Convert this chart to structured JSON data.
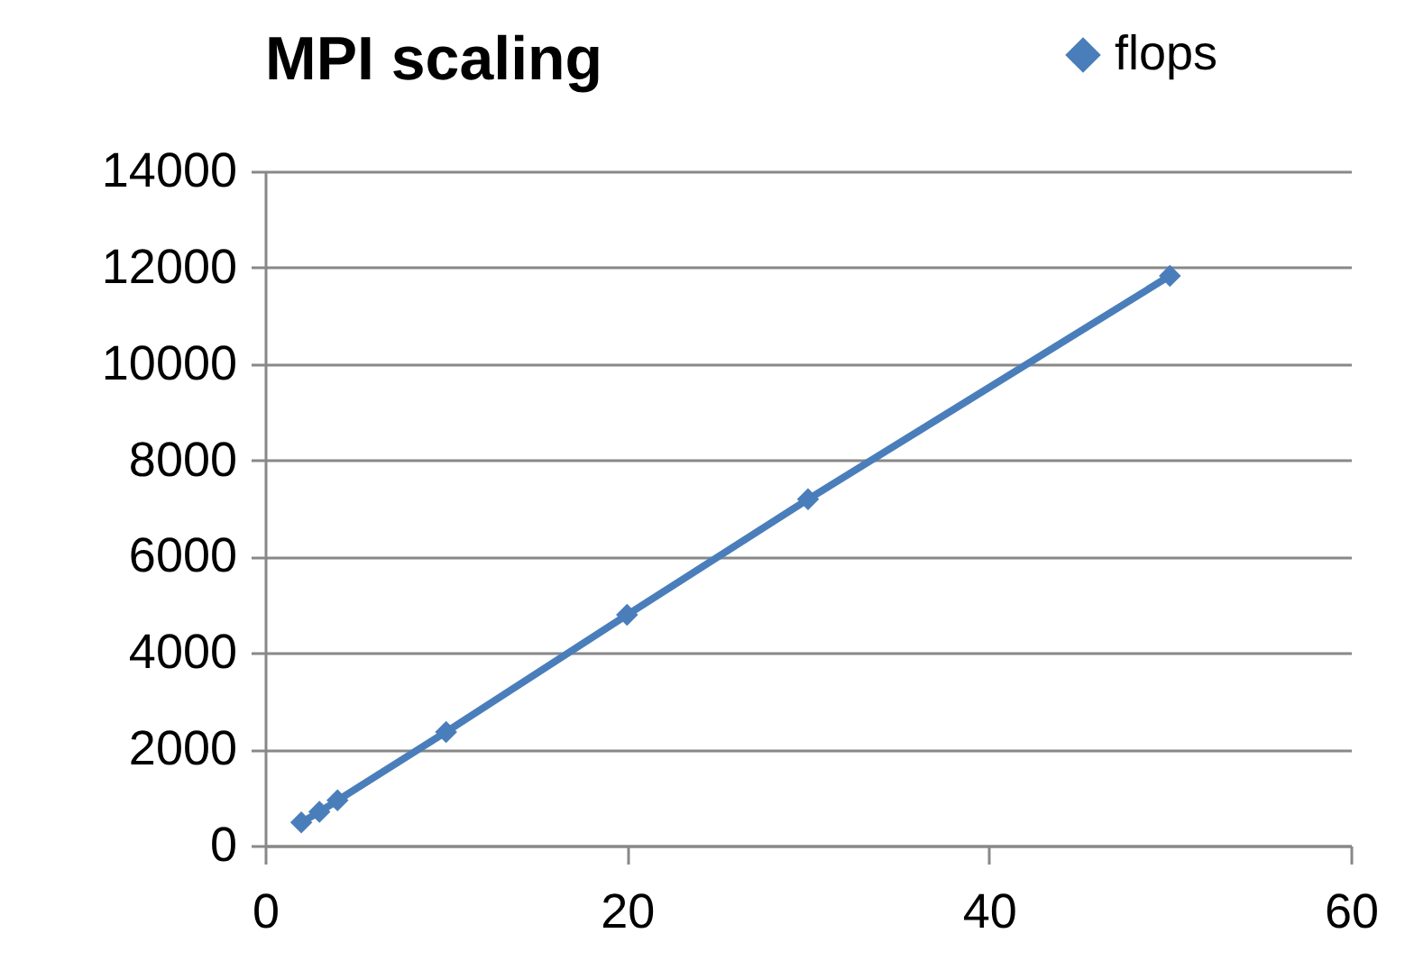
{
  "chart_data": {
    "type": "line",
    "title": "MPI scaling",
    "x": [
      2,
      3,
      4,
      10,
      20,
      30,
      50
    ],
    "series": [
      {
        "name": "flops",
        "color": "#4a7ebb",
        "values": [
          480,
          700,
          940,
          2360,
          4790,
          7190,
          11830
        ]
      }
    ],
    "xlim": [
      0,
      60
    ],
    "xticks": [
      0,
      20,
      40,
      60
    ],
    "ylim": [
      0,
      14000
    ],
    "yticks": [
      0,
      2000,
      4000,
      6000,
      8000,
      10000,
      12000,
      14000
    ],
    "grid": "y",
    "legend": "top right",
    "marker": "diamond",
    "line_style": "solid"
  }
}
